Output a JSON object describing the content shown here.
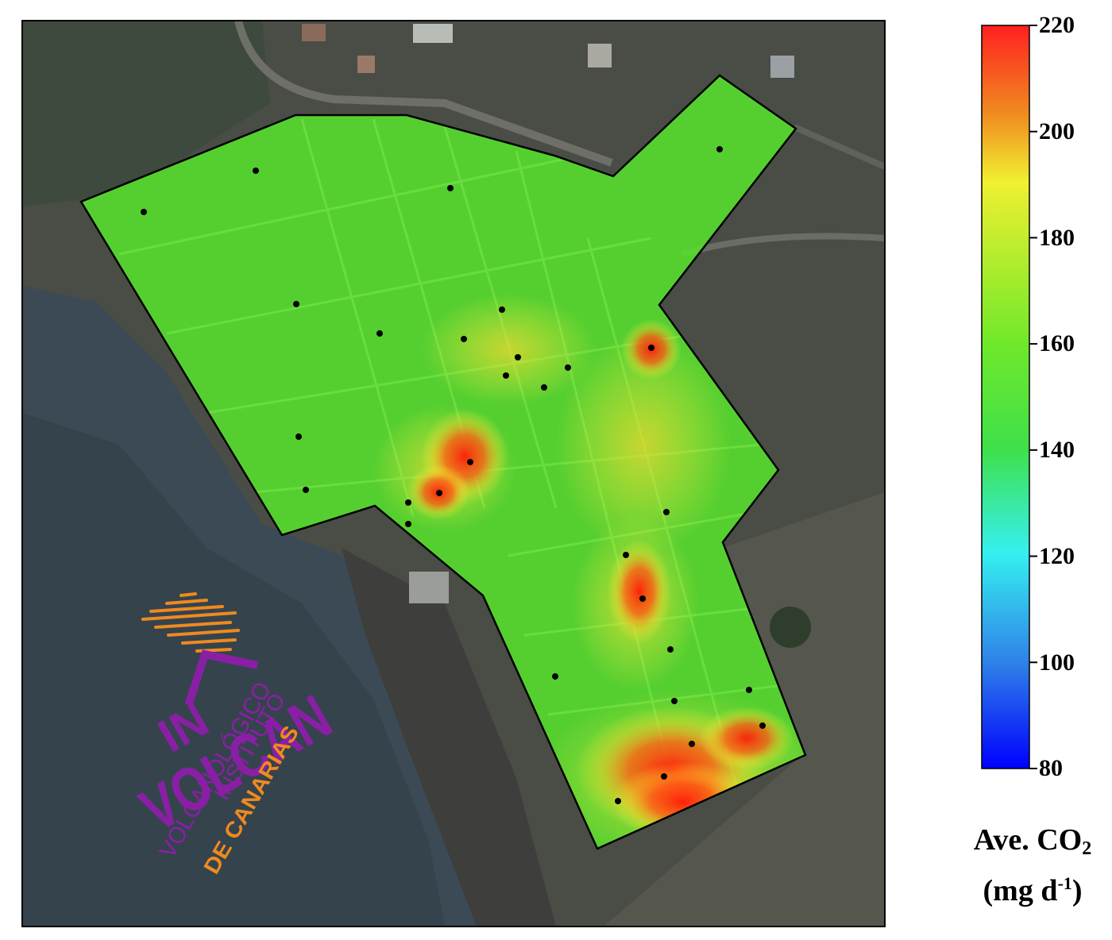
{
  "colorbar": {
    "ticks": [
      "220",
      "200",
      "180",
      "160",
      "140",
      "120",
      "100",
      "80"
    ],
    "min": 80,
    "max": 220,
    "stops": [
      "#0000ff",
      "#2f7fe8",
      "#35f0f0",
      "#3fe04a",
      "#6fe82a",
      "#f0f030",
      "#f08c20",
      "#ff2020"
    ]
  },
  "legend": {
    "title_line1": "Ave. CO",
    "title_sub": "2",
    "title_line2_a": "(mg d",
    "title_sup": "-1",
    "title_line2_b": ")"
  },
  "logo": {
    "word_volcan": "VOLCAN",
    "word_in": "IN",
    "line_instituto": "INSTITUTO",
    "line_volcanologico": "VOLCANOLÓGICO",
    "line_canarias": "DE CANARIAS",
    "purple": "#8a1fa6",
    "orange": "#ef8a1e"
  },
  "colors": {
    "background_land": "#4a4d45",
    "sea": "#3a4a56",
    "overlay_green": "#55e02c",
    "hotspot": "#ff2a12"
  },
  "samples": [
    [
      180,
      1.9
    ],
    [
      322,
      1.75
    ],
    [
      566,
      1.8
    ],
    [
      905,
      1.8
    ],
    [
      373,
      1.65
    ],
    [
      478,
      1.55
    ],
    [
      584,
      1.6
    ],
    [
      632,
      1.75
    ],
    [
      652,
      1.7
    ],
    [
      637,
      1.7
    ],
    [
      685,
      1.65
    ],
    [
      715,
      1.6
    ],
    [
      820,
      2.1
    ],
    [
      375,
      1.5
    ],
    [
      592,
      2.05
    ],
    [
      385,
      1.55
    ],
    [
      553,
      2.05
    ],
    [
      514,
      1.6
    ],
    [
      514,
      1.55
    ],
    [
      839,
      1.6
    ],
    [
      788,
      1.9
    ],
    [
      809,
      1.95
    ],
    [
      844,
      1.85
    ],
    [
      699,
      1.55
    ],
    [
      849,
      1.95
    ],
    [
      943,
      1.5
    ],
    [
      960,
      2.0
    ],
    [
      871,
      2.1
    ],
    [
      836,
      2.15
    ],
    [
      778,
      1.9
    ]
  ]
}
